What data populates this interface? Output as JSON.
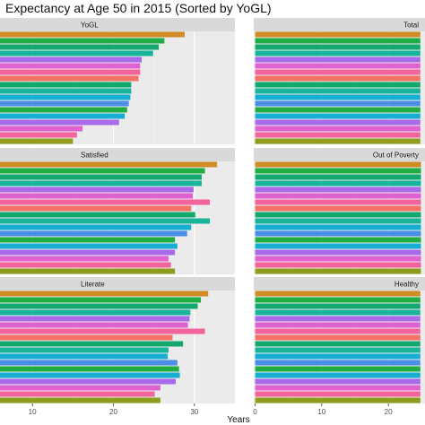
{
  "title": "Expectancy at Age 50 in 2015 (Sorted by YoGL)",
  "colors": {
    "panel_bg": "#ebebeb",
    "strip_bg": "#d9d9d9",
    "grid_major": "#ffffff",
    "grid_minor": "#f5f5f5",
    "bar_palette": [
      "#d18b26",
      "#8f9c1c",
      "#21ad43",
      "#13a86e",
      "#19b59b",
      "#18aed4",
      "#4c8de8",
      "#a86ae8",
      "#e062d1",
      "#f4649c",
      "#f27365"
    ]
  },
  "chart_data": {
    "type": "bar",
    "orientation": "horizontal",
    "facets": "2x3 grid, free x scales per column",
    "title": "Expectancy at Age 50 in 2015 (Sorted by YoGL)",
    "xlabel": "Years",
    "ylabel": "",
    "columns": [
      {
        "xlim": [
          6,
          35
        ],
        "ticks": [
          10,
          20,
          30
        ]
      },
      {
        "xlim": [
          -0.2,
          25.5
        ],
        "ticks": [
          0,
          10,
          20
        ]
      }
    ],
    "category_colors": [
      "#d18b26",
      "#21ad43",
      "#13a86e",
      "#19b59b",
      "#a86ae8",
      "#e062d1",
      "#f4649c",
      "#f27365",
      "#13a86e",
      "#19b59b",
      "#18aed4",
      "#4c8de8",
      "#21ad43",
      "#18aed4",
      "#a86ae8",
      "#e062d1",
      "#f4649c",
      "#8f9c1c"
    ],
    "panels": [
      {
        "name": "YoGL",
        "values": [
          28.8,
          26.3,
          25.6,
          24.9,
          23.5,
          23.3,
          23.3,
          23.1,
          22.2,
          22.2,
          22.1,
          21.9,
          21.7,
          21.4,
          20.7,
          16.2,
          15.5,
          15.0
        ]
      },
      {
        "name": "Total",
        "values": [
          24.8,
          24.8,
          24.8,
          24.8,
          24.8,
          24.8,
          24.8,
          24.8,
          24.8,
          24.8,
          24.8,
          24.8,
          24.8,
          24.8,
          24.8,
          24.8,
          24.8,
          24.8
        ]
      },
      {
        "name": "Satisfied",
        "values": [
          32.8,
          31.3,
          30.9,
          30.9,
          29.9,
          29.8,
          31.9,
          29.6,
          30.1,
          31.9,
          29.6,
          29.1,
          27.6,
          27.9,
          27.6,
          26.8,
          27.1,
          27.6
        ]
      },
      {
        "name": "Out of Poverty",
        "values": [
          24.9,
          24.9,
          24.9,
          24.9,
          24.9,
          24.9,
          24.9,
          24.9,
          24.9,
          24.9,
          24.9,
          24.9,
          24.9,
          24.9,
          24.9,
          24.9,
          24.9,
          24.9
        ]
      },
      {
        "name": "Literate",
        "values": [
          31.7,
          30.8,
          30.4,
          29.5,
          29.4,
          29.2,
          31.3,
          27.3,
          28.6,
          26.8,
          26.7,
          27.9,
          28.1,
          28.2,
          27.7,
          25.8,
          25.1,
          25.8
        ]
      },
      {
        "name": "Healthy",
        "values": [
          24.8,
          24.8,
          24.8,
          24.8,
          24.8,
          24.8,
          24.8,
          24.8,
          24.8,
          24.8,
          24.8,
          24.8,
          24.8,
          24.8,
          24.8,
          24.8,
          24.8,
          24.8
        ]
      }
    ]
  }
}
